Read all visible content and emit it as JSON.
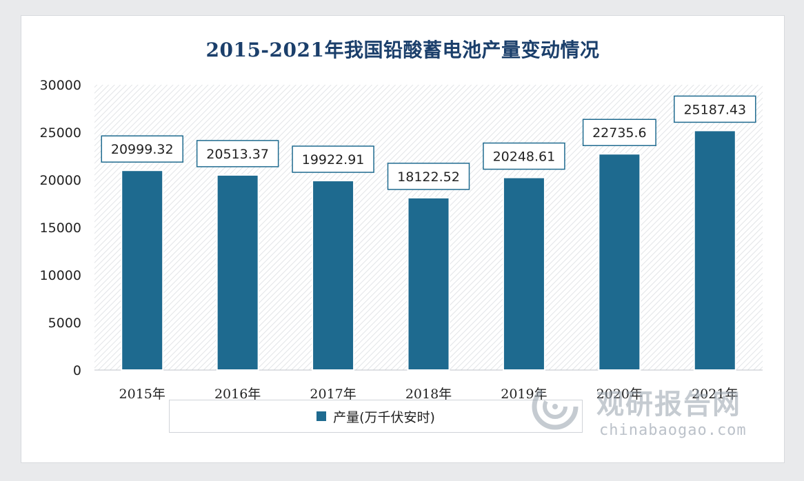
{
  "chart_data": {
    "type": "bar",
    "title": "2015-2021年我国铅酸蓄电池产量变动情况",
    "categories": [
      "2015年",
      "2016年",
      "2017年",
      "2018年",
      "2019年",
      "2020年",
      "2021年"
    ],
    "series": [
      {
        "name": "产量(万千伏安时)",
        "values": [
          20999.32,
          20513.37,
          19922.91,
          18122.52,
          20248.61,
          22735.6,
          25187.43
        ],
        "value_labels": [
          "20999.32",
          "20513.37",
          "19922.91",
          "18122.52",
          "20248.61",
          "22735.6",
          "25187.43"
        ],
        "color": "#1e6a8f"
      }
    ],
    "ylim": [
      0,
      30000
    ],
    "yticks": [
      0,
      5000,
      10000,
      15000,
      20000,
      25000,
      30000
    ],
    "xlabel": "",
    "ylabel": "",
    "legend_position": "bottom",
    "grid": false,
    "background_pattern": "diagonal-hatch"
  },
  "watermark": {
    "name_cn": "观研报告网",
    "site": "chinabaogao.com",
    "logo_icon": "swirl-logo-icon"
  },
  "colors": {
    "bar": "#1e6a8f",
    "title": "#1b3f6b",
    "label_border": "#1e6a8f"
  }
}
